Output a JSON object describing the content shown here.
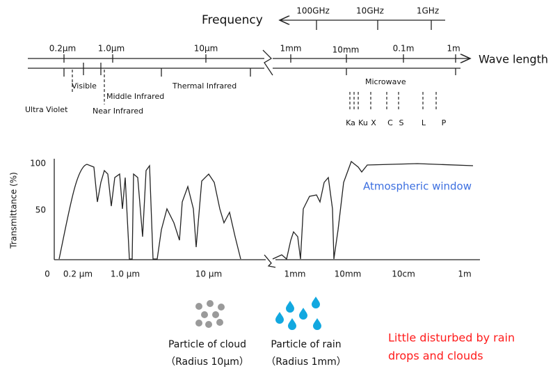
{
  "frequency": {
    "label": "Frequency",
    "ticks": [
      "100GHz",
      "10GHz",
      "1GHz"
    ]
  },
  "wavelength": {
    "label": "Wave length",
    "ticks": [
      "0.2μm",
      "1.0μm",
      "10μm",
      "1mm",
      "10mm",
      "0.1m",
      "1m"
    ]
  },
  "bands": {
    "visible": "Visible",
    "ultra_violet": "Ultra Violet",
    "near_infrared": "Near Infrared",
    "middle_infrared": "Middle Infrared",
    "thermal_infrared": "Thermal Infrared",
    "microwave": "Microwave"
  },
  "microwave_bands": [
    "Ka",
    "Ku",
    "X",
    "C",
    "S",
    "L",
    "P"
  ],
  "transmittance": {
    "y_label": "Transmittance (%)",
    "yticks": [
      "100",
      "50"
    ],
    "x_origin": "0",
    "xticks": [
      "0.2 µm",
      "1.0 µm",
      "10 µm",
      "1mm",
      "10mm",
      "10cm",
      "1m"
    ],
    "annotation": "Atmospheric window"
  },
  "particles": [
    {
      "label": "Particle of cloud",
      "size": "（Radius 10μm）"
    },
    {
      "label": "Particle of rain",
      "size": "（Radius  1mm）"
    }
  ],
  "note": [
    "Little disturbed by rain",
    "drops and clouds"
  ]
}
